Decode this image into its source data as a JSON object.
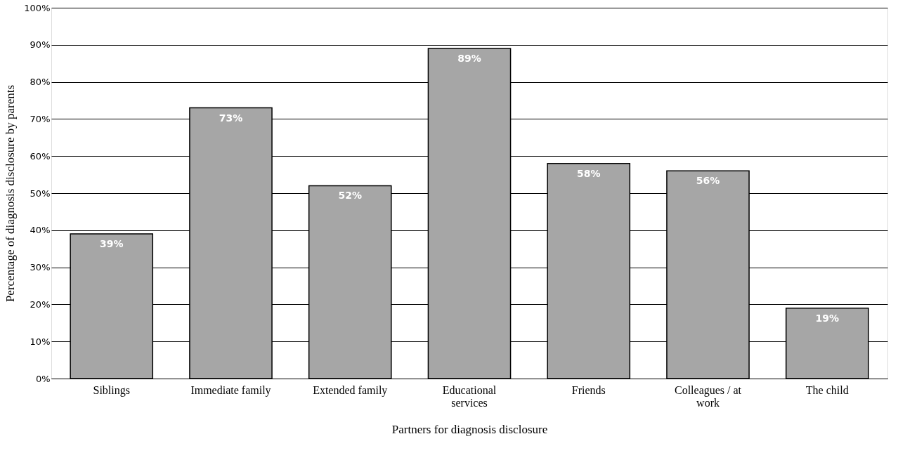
{
  "chart_data": {
    "type": "bar",
    "xlabel": "Partners for diagnosis disclosure",
    "ylabel": "Percentage of diagnosis disclosure by parents",
    "categories": [
      "Siblings",
      "Immediate family",
      "Extended family",
      "Educational services",
      "Friends",
      "Colleagues / at work",
      "The child"
    ],
    "values": [
      39,
      73,
      52,
      89,
      58,
      56,
      19
    ],
    "value_labels": [
      "39%",
      "73%",
      "52%",
      "89%",
      "58%",
      "56%",
      "19%"
    ],
    "color": "#a6a6a6",
    "ylim": [
      0,
      100
    ],
    "yticks": [
      {
        "value": 0,
        "label": "0%"
      },
      {
        "value": 10,
        "label": "10%"
      },
      {
        "value": 20,
        "label": "20%"
      },
      {
        "value": 30,
        "label": "30%"
      },
      {
        "value": 40,
        "label": "40%"
      },
      {
        "value": 50,
        "label": "50%"
      },
      {
        "value": 60,
        "label": "60%"
      },
      {
        "value": 70,
        "label": "70%"
      },
      {
        "value": 80,
        "label": "80%"
      },
      {
        "value": 90,
        "label": "90%"
      },
      {
        "value": 100,
        "label": "100%"
      }
    ],
    "grid": "y"
  }
}
